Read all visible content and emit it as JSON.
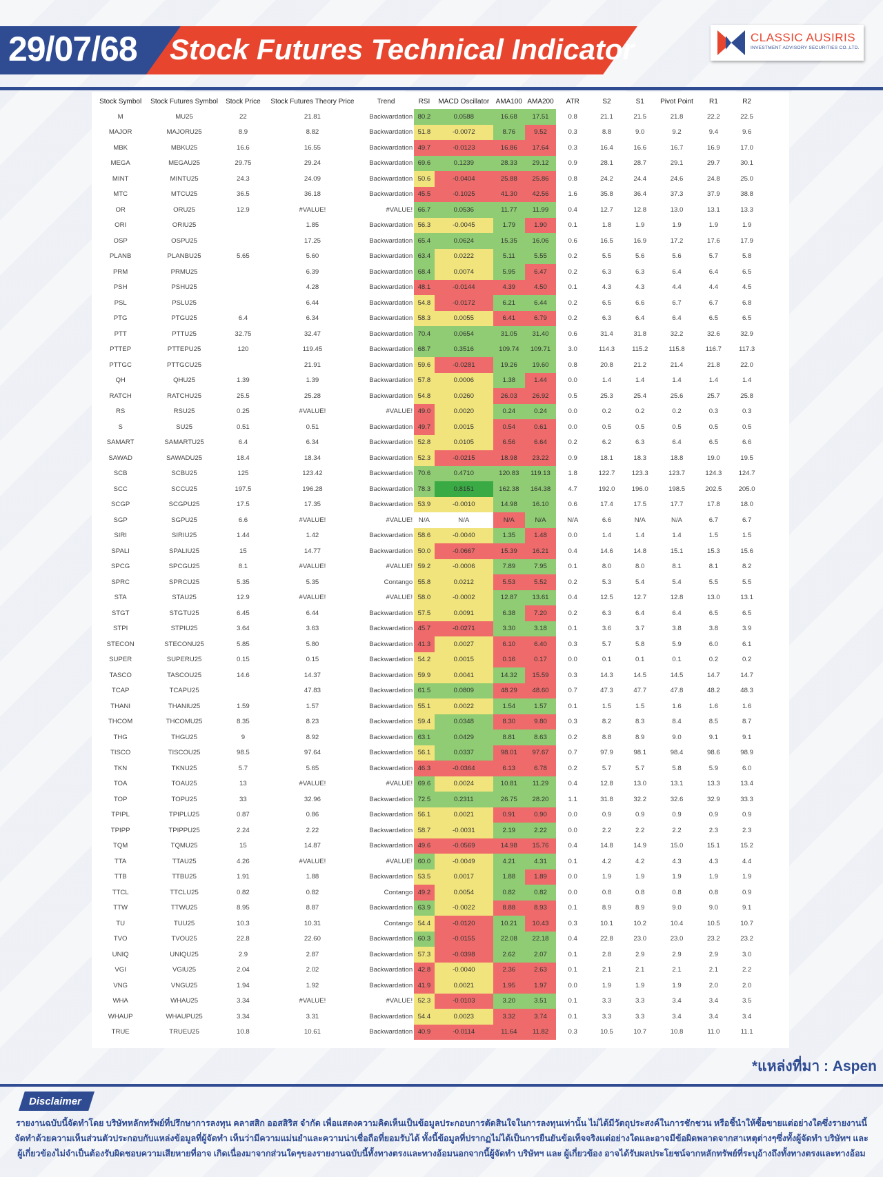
{
  "header": {
    "date": "29/07/68",
    "title": "Stock Futures Technical Indicator",
    "logo_name": "CLASSIC AUSIRIS",
    "logo_sub": "INVESTMENT ADVISORY SECURITIES CO.,LTD."
  },
  "colors": {
    "brand_blue": "#2f4c93",
    "brand_red": "#e8452f",
    "shade_red": "#ef6b6b",
    "shade_yellow": "#f1e47c",
    "shade_green": "#8fcc73",
    "shade_dark_green": "#3aaa45"
  },
  "columns": [
    "Stock Symbol",
    "Stock Futures Symbol",
    "Stock Price",
    "Stock Futures Theory Price",
    "Trend",
    "RSI",
    "MACD Oscillator",
    "AMA100",
    "AMA200",
    "ATR",
    "S2",
    "S1",
    "Pivot Point",
    "R1",
    "R2"
  ],
  "rows": [
    [
      "M",
      "MU25",
      "22",
      "21.81",
      "Backwardation",
      "80.2",
      "0.0588",
      "16.68",
      "17.51",
      "0.8",
      "21.1",
      "21.5",
      "21.8",
      "22.2",
      "22.5"
    ],
    [
      "MAJOR",
      "MAJORU25",
      "8.9",
      "8.82",
      "Backwardation",
      "51.8",
      "-0.0072",
      "8.76",
      "9.52",
      "0.3",
      "8.8",
      "9.0",
      "9.2",
      "9.4",
      "9.6"
    ],
    [
      "MBK",
      "MBKU25",
      "16.6",
      "16.55",
      "Backwardation",
      "49.7",
      "-0.0123",
      "16.86",
      "17.64",
      "0.3",
      "16.4",
      "16.6",
      "16.7",
      "16.9",
      "17.0"
    ],
    [
      "MEGA",
      "MEGAU25",
      "29.75",
      "29.24",
      "Backwardation",
      "69.6",
      "0.1239",
      "28.33",
      "29.12",
      "0.9",
      "28.1",
      "28.7",
      "29.1",
      "29.7",
      "30.1"
    ],
    [
      "MINT",
      "MINTU25",
      "24.3",
      "24.09",
      "Backwardation",
      "50.6",
      "-0.0404",
      "25.88",
      "25.86",
      "0.8",
      "24.2",
      "24.4",
      "24.6",
      "24.8",
      "25.0"
    ],
    [
      "MTC",
      "MTCU25",
      "36.5",
      "36.18",
      "Backwardation",
      "45.5",
      "-0.1025",
      "41.30",
      "42.56",
      "1.6",
      "35.8",
      "36.4",
      "37.3",
      "37.9",
      "38.8"
    ],
    [
      "OR",
      "ORU25",
      "12.9",
      "#VALUE!",
      "#VALUE!",
      "66.7",
      "0.0536",
      "11.77",
      "11.99",
      "0.4",
      "12.7",
      "12.8",
      "13.0",
      "13.1",
      "13.3"
    ],
    [
      "ORI",
      "ORIU25",
      "",
      "1.85",
      "Backwardation",
      "56.3",
      "-0.0045",
      "1.79",
      "1.90",
      "0.1",
      "1.8",
      "1.9",
      "1.9",
      "1.9",
      "1.9"
    ],
    [
      "OSP",
      "OSPU25",
      "",
      "17.25",
      "Backwardation",
      "65.4",
      "0.0624",
      "15.35",
      "16.06",
      "0.6",
      "16.5",
      "16.9",
      "17.2",
      "17.6",
      "17.9"
    ],
    [
      "PLANB",
      "PLANBU25",
      "5.65",
      "5.60",
      "Backwardation",
      "63.4",
      "0.0222",
      "5.11",
      "5.55",
      "0.2",
      "5.5",
      "5.6",
      "5.6",
      "5.7",
      "5.8"
    ],
    [
      "PRM",
      "PRMU25",
      "",
      "6.39",
      "Backwardation",
      "68.4",
      "0.0074",
      "5.95",
      "6.47",
      "0.2",
      "6.3",
      "6.3",
      "6.4",
      "6.4",
      "6.5"
    ],
    [
      "PSH",
      "PSHU25",
      "",
      "4.28",
      "Backwardation",
      "48.1",
      "-0.0144",
      "4.39",
      "4.50",
      "0.1",
      "4.3",
      "4.3",
      "4.4",
      "4.4",
      "4.5"
    ],
    [
      "PSL",
      "PSLU25",
      "",
      "6.44",
      "Backwardation",
      "54.8",
      "-0.0172",
      "6.21",
      "6.44",
      "0.2",
      "6.5",
      "6.6",
      "6.7",
      "6.7",
      "6.8"
    ],
    [
      "PTG",
      "PTGU25",
      "6.4",
      "6.34",
      "Backwardation",
      "58.3",
      "0.0055",
      "6.41",
      "6.79",
      "0.2",
      "6.3",
      "6.4",
      "6.4",
      "6.5",
      "6.5"
    ],
    [
      "PTT",
      "PTTU25",
      "32.75",
      "32.47",
      "Backwardation",
      "70.4",
      "0.0654",
      "31.05",
      "31.40",
      "0.6",
      "31.4",
      "31.8",
      "32.2",
      "32.6",
      "32.9"
    ],
    [
      "PTTEP",
      "PTTEPU25",
      "120",
      "119.45",
      "Backwardation",
      "68.7",
      "0.3516",
      "109.74",
      "109.71",
      "3.0",
      "114.3",
      "115.2",
      "115.8",
      "116.7",
      "117.3"
    ],
    [
      "PTTGC",
      "PTTGCU25",
      "",
      "21.91",
      "Backwardation",
      "59.6",
      "-0.0281",
      "19.26",
      "19.60",
      "0.8",
      "20.8",
      "21.2",
      "21.4",
      "21.8",
      "22.0"
    ],
    [
      "QH",
      "QHU25",
      "1.39",
      "1.39",
      "Backwardation",
      "57.8",
      "0.0006",
      "1.38",
      "1.44",
      "0.0",
      "1.4",
      "1.4",
      "1.4",
      "1.4",
      "1.4"
    ],
    [
      "RATCH",
      "RATCHU25",
      "25.5",
      "25.28",
      "Backwardation",
      "54.8",
      "0.0260",
      "26.03",
      "26.92",
      "0.5",
      "25.3",
      "25.4",
      "25.6",
      "25.7",
      "25.8"
    ],
    [
      "RS",
      "RSU25",
      "0.25",
      "#VALUE!",
      "#VALUE!",
      "49.0",
      "0.0020",
      "0.24",
      "0.24",
      "0.0",
      "0.2",
      "0.2",
      "0.2",
      "0.3",
      "0.3"
    ],
    [
      "S",
      "SU25",
      "0.51",
      "0.51",
      "Backwardation",
      "49.7",
      "0.0015",
      "0.54",
      "0.61",
      "0.0",
      "0.5",
      "0.5",
      "0.5",
      "0.5",
      "0.5"
    ],
    [
      "SAMART",
      "SAMARTU25",
      "6.4",
      "6.34",
      "Backwardation",
      "52.8",
      "0.0105",
      "6.56",
      "6.64",
      "0.2",
      "6.2",
      "6.3",
      "6.4",
      "6.5",
      "6.6"
    ],
    [
      "SAWAD",
      "SAWADU25",
      "18.4",
      "18.34",
      "Backwardation",
      "52.3",
      "-0.0215",
      "18.98",
      "23.22",
      "0.9",
      "18.1",
      "18.3",
      "18.8",
      "19.0",
      "19.5"
    ],
    [
      "SCB",
      "SCBU25",
      "125",
      "123.42",
      "Backwardation",
      "70.6",
      "0.4710",
      "120.83",
      "119.13",
      "1.8",
      "122.7",
      "123.3",
      "123.7",
      "124.3",
      "124.7"
    ],
    [
      "SCC",
      "SCCU25",
      "197.5",
      "196.28",
      "Backwardation",
      "78.3",
      "0.8151",
      "162.38",
      "164.38",
      "4.7",
      "192.0",
      "196.0",
      "198.5",
      "202.5",
      "205.0"
    ],
    [
      "SCGP",
      "SCGPU25",
      "17.5",
      "17.35",
      "Backwardation",
      "53.9",
      "-0.0010",
      "14.98",
      "16.10",
      "0.6",
      "17.4",
      "17.5",
      "17.7",
      "17.8",
      "18.0"
    ],
    [
      "SGP",
      "SGPU25",
      "6.6",
      "#VALUE!",
      "#VALUE!",
      "N/A",
      "N/A",
      "N/A",
      "N/A",
      "N/A",
      "6.6",
      "N/A",
      "N/A",
      "6.7",
      "6.7"
    ],
    [
      "SIRI",
      "SIRIU25",
      "1.44",
      "1.42",
      "Backwardation",
      "58.6",
      "-0.0040",
      "1.35",
      "1.48",
      "0.0",
      "1.4",
      "1.4",
      "1.4",
      "1.5",
      "1.5"
    ],
    [
      "SPALI",
      "SPALIU25",
      "15",
      "14.77",
      "Backwardation",
      "50.0",
      "-0.0667",
      "15.39",
      "16.21",
      "0.4",
      "14.6",
      "14.8",
      "15.1",
      "15.3",
      "15.6"
    ],
    [
      "SPCG",
      "SPCGU25",
      "8.1",
      "#VALUE!",
      "#VALUE!",
      "59.2",
      "-0.0006",
      "7.89",
      "7.95",
      "0.1",
      "8.0",
      "8.0",
      "8.1",
      "8.1",
      "8.2"
    ],
    [
      "SPRC",
      "SPRCU25",
      "5.35",
      "5.35",
      "Contango",
      "55.8",
      "0.0212",
      "5.53",
      "5.52",
      "0.2",
      "5.3",
      "5.4",
      "5.4",
      "5.5",
      "5.5"
    ],
    [
      "STA",
      "STAU25",
      "12.9",
      "#VALUE!",
      "#VALUE!",
      "58.0",
      "-0.0002",
      "12.87",
      "13.61",
      "0.4",
      "12.5",
      "12.7",
      "12.8",
      "13.0",
      "13.1"
    ],
    [
      "STGT",
      "STGTU25",
      "6.45",
      "6.44",
      "Backwardation",
      "57.5",
      "0.0091",
      "6.38",
      "7.20",
      "0.2",
      "6.3",
      "6.4",
      "6.4",
      "6.5",
      "6.5"
    ],
    [
      "STPI",
      "STPIU25",
      "3.64",
      "3.63",
      "Backwardation",
      "45.7",
      "-0.0271",
      "3.30",
      "3.18",
      "0.1",
      "3.6",
      "3.7",
      "3.8",
      "3.8",
      "3.9"
    ],
    [
      "STECON",
      "STECONU25",
      "5.85",
      "5.80",
      "Backwardation",
      "41.3",
      "0.0027",
      "6.10",
      "6.40",
      "0.3",
      "5.7",
      "5.8",
      "5.9",
      "6.0",
      "6.1"
    ],
    [
      "SUPER",
      "SUPERU25",
      "0.15",
      "0.15",
      "Backwardation",
      "54.2",
      "0.0015",
      "0.16",
      "0.17",
      "0.0",
      "0.1",
      "0.1",
      "0.1",
      "0.2",
      "0.2"
    ],
    [
      "TASCO",
      "TASCOU25",
      "14.6",
      "14.37",
      "Backwardation",
      "59.9",
      "0.0041",
      "14.32",
      "15.59",
      "0.3",
      "14.3",
      "14.5",
      "14.5",
      "14.7",
      "14.7"
    ],
    [
      "TCAP",
      "TCAPU25",
      "",
      "47.83",
      "Backwardation",
      "61.5",
      "0.0809",
      "48.29",
      "48.60",
      "0.7",
      "47.3",
      "47.7",
      "47.8",
      "48.2",
      "48.3"
    ],
    [
      "THANI",
      "THANIU25",
      "1.59",
      "1.57",
      "Backwardation",
      "55.1",
      "0.0022",
      "1.54",
      "1.57",
      "0.1",
      "1.5",
      "1.5",
      "1.6",
      "1.6",
      "1.6"
    ],
    [
      "THCOM",
      "THCOMU25",
      "8.35",
      "8.23",
      "Backwardation",
      "59.4",
      "0.0348",
      "8.30",
      "9.80",
      "0.3",
      "8.2",
      "8.3",
      "8.4",
      "8.5",
      "8.7"
    ],
    [
      "THG",
      "THGU25",
      "9",
      "8.92",
      "Backwardation",
      "63.1",
      "0.0429",
      "8.81",
      "8.63",
      "0.2",
      "8.8",
      "8.9",
      "9.0",
      "9.1",
      "9.1"
    ],
    [
      "TISCO",
      "TISCOU25",
      "98.5",
      "97.64",
      "Backwardation",
      "56.1",
      "0.0337",
      "98.01",
      "97.67",
      "0.7",
      "97.9",
      "98.1",
      "98.4",
      "98.6",
      "98.9"
    ],
    [
      "TKN",
      "TKNU25",
      "5.7",
      "5.65",
      "Backwardation",
      "46.3",
      "-0.0364",
      "6.13",
      "6.78",
      "0.2",
      "5.7",
      "5.7",
      "5.8",
      "5.9",
      "6.0"
    ],
    [
      "TOA",
      "TOAU25",
      "13",
      "#VALUE!",
      "#VALUE!",
      "69.6",
      "0.0024",
      "10.81",
      "11.29",
      "0.4",
      "12.8",
      "13.0",
      "13.1",
      "13.3",
      "13.4"
    ],
    [
      "TOP",
      "TOPU25",
      "33",
      "32.96",
      "Backwardation",
      "72.5",
      "0.2311",
      "26.75",
      "28.20",
      "1.1",
      "31.8",
      "32.2",
      "32.6",
      "32.9",
      "33.3"
    ],
    [
      "TPIPL",
      "TPIPLU25",
      "0.87",
      "0.86",
      "Backwardation",
      "56.1",
      "0.0021",
      "0.91",
      "0.90",
      "0.0",
      "0.9",
      "0.9",
      "0.9",
      "0.9",
      "0.9"
    ],
    [
      "TPIPP",
      "TPIPPU25",
      "2.24",
      "2.22",
      "Backwardation",
      "58.7",
      "-0.0031",
      "2.19",
      "2.22",
      "0.0",
      "2.2",
      "2.2",
      "2.2",
      "2.3",
      "2.3"
    ],
    [
      "TQM",
      "TQMU25",
      "15",
      "14.87",
      "Backwardation",
      "49.6",
      "-0.0569",
      "14.98",
      "15.76",
      "0.4",
      "14.8",
      "14.9",
      "15.0",
      "15.1",
      "15.2"
    ],
    [
      "TTA",
      "TTAU25",
      "4.26",
      "#VALUE!",
      "#VALUE!",
      "60.0",
      "-0.0049",
      "4.21",
      "4.31",
      "0.1",
      "4.2",
      "4.2",
      "4.3",
      "4.3",
      "4.4"
    ],
    [
      "TTB",
      "TTBU25",
      "1.91",
      "1.88",
      "Backwardation",
      "53.5",
      "0.0017",
      "1.88",
      "1.89",
      "0.0",
      "1.9",
      "1.9",
      "1.9",
      "1.9",
      "1.9"
    ],
    [
      "TTCL",
      "TTCLU25",
      "0.82",
      "0.82",
      "Contango",
      "49.2",
      "0.0054",
      "0.82",
      "0.82",
      "0.0",
      "0.8",
      "0.8",
      "0.8",
      "0.8",
      "0.9"
    ],
    [
      "TTW",
      "TTWU25",
      "8.95",
      "8.87",
      "Backwardation",
      "63.9",
      "-0.0022",
      "8.88",
      "8.93",
      "0.1",
      "8.9",
      "8.9",
      "9.0",
      "9.0",
      "9.1"
    ],
    [
      "TU",
      "TUU25",
      "10.3",
      "10.31",
      "Contango",
      "54.4",
      "-0.0120",
      "10.21",
      "10.43",
      "0.3",
      "10.1",
      "10.2",
      "10.4",
      "10.5",
      "10.7"
    ],
    [
      "TVO",
      "TVOU25",
      "22.8",
      "22.60",
      "Backwardation",
      "60.3",
      "-0.0155",
      "22.08",
      "22.18",
      "0.4",
      "22.8",
      "23.0",
      "23.0",
      "23.2",
      "23.2"
    ],
    [
      "UNIQ",
      "UNIQU25",
      "2.9",
      "2.87",
      "Backwardation",
      "57.3",
      "-0.0398",
      "2.62",
      "2.07",
      "0.1",
      "2.8",
      "2.9",
      "2.9",
      "2.9",
      "3.0"
    ],
    [
      "VGI",
      "VGIU25",
      "2.04",
      "2.02",
      "Backwardation",
      "42.8",
      "-0.0040",
      "2.36",
      "2.63",
      "0.1",
      "2.1",
      "2.1",
      "2.1",
      "2.1",
      "2.2"
    ],
    [
      "VNG",
      "VNGU25",
      "1.94",
      "1.92",
      "Backwardation",
      "41.9",
      "0.0021",
      "1.95",
      "1.97",
      "0.0",
      "1.9",
      "1.9",
      "1.9",
      "2.0",
      "2.0"
    ],
    [
      "WHA",
      "WHAU25",
      "3.34",
      "#VALUE!",
      "#VALUE!",
      "52.3",
      "-0.0103",
      "3.20",
      "3.51",
      "0.1",
      "3.3",
      "3.3",
      "3.4",
      "3.4",
      "3.5"
    ],
    [
      "WHAUP",
      "WHAUPU25",
      "3.34",
      "3.31",
      "Backwardation",
      "54.4",
      "0.0023",
      "3.32",
      "3.74",
      "0.1",
      "3.3",
      "3.3",
      "3.4",
      "3.4",
      "3.4"
    ],
    [
      "TRUE",
      "TRUEU25",
      "10.8",
      "10.61",
      "Backwardation",
      "40.9",
      "-0.0114",
      "11.64",
      "11.82",
      "0.3",
      "10.5",
      "10.7",
      "10.8",
      "11.0",
      "11.1"
    ]
  ],
  "source": "*แหล่งที่มา : Aspen",
  "disclaimer": {
    "label": "Disclaimer",
    "text": "รายงานฉบับนี้จัดทำโดย บริษัทหลักทรัพย์ที่ปรึกษาการลงทุน คลาสสิก ออสสิริส จำกัด เพื่อแสดงความคิดเห็นเป็นข้อมูลประกอบการตัดสินใจในการลงทุนเท่านั้น ไม่ได้มีวัตถุประสงค์ในการชักชวน หรือชี้นำให้ซื้อขายแต่อย่างใดซึ่งรายงานนี้จัดทำด้วยความเห็นส่วนตัวประกอบกับแหล่งข้อมูลที่ผู้จัดทำ เห็นว่ามีความแม่นยำและความน่าเชื่อถือที่ยอมรับได้ ทั้งนี้ข้อมูลที่ปรากฏไม่ได้เป็นการยืนยันข้อเท็จจริงแต่อย่างใดและอาจมีข้อผิดพลาดจากสาเหตุต่างๆซึ่งทั้งผู้จัดทำ บริษัทฯ และ ผู้เกี่ยวข้องไม่จำเป็นต้องรับผิดชอบความเสียหายที่อาจ เกิดเนื่องมาจากส่วนใดๆของรายงานฉบับนี้ทั้งทางตรงและทางอ้อมนอกจากนี้ผู้จัดทำ บริษัทฯ และ ผู้เกี่ยวข้อง อาจได้รับผลประโยชน์จากหลักทรัพย์ที่ระบุอ้างถึงทั้งทางตรงและทางอ้อม"
  }
}
